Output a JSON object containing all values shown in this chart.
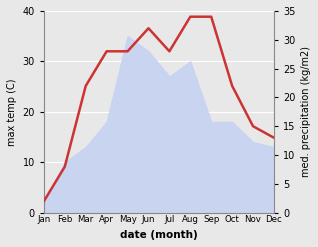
{
  "months": [
    "Jan",
    "Feb",
    "Mar",
    "Apr",
    "May",
    "Jun",
    "Jul",
    "Aug",
    "Sep",
    "Oct",
    "Nov",
    "Dec"
  ],
  "max_temp": [
    2,
    10,
    13,
    18,
    35,
    32,
    27,
    30,
    18,
    18,
    14,
    13
  ],
  "precipitation": [
    2,
    8,
    22,
    28,
    28,
    32,
    28,
    34,
    34,
    22,
    15,
    13
  ],
  "precip_color": "#cc3333",
  "temp_fill_color": "#c8d4f0",
  "xlabel": "date (month)",
  "ylabel_left": "max temp (C)",
  "ylabel_right": "med. precipitation (kg/m2)",
  "ylim_left": [
    0,
    40
  ],
  "ylim_right": [
    0,
    35
  ],
  "yticks_left": [
    0,
    10,
    20,
    30,
    40
  ],
  "yticks_right": [
    0,
    5,
    10,
    15,
    20,
    25,
    30,
    35
  ],
  "bg_color": "#e8e8e8",
  "fig_width": 3.18,
  "fig_height": 2.47,
  "dpi": 100
}
